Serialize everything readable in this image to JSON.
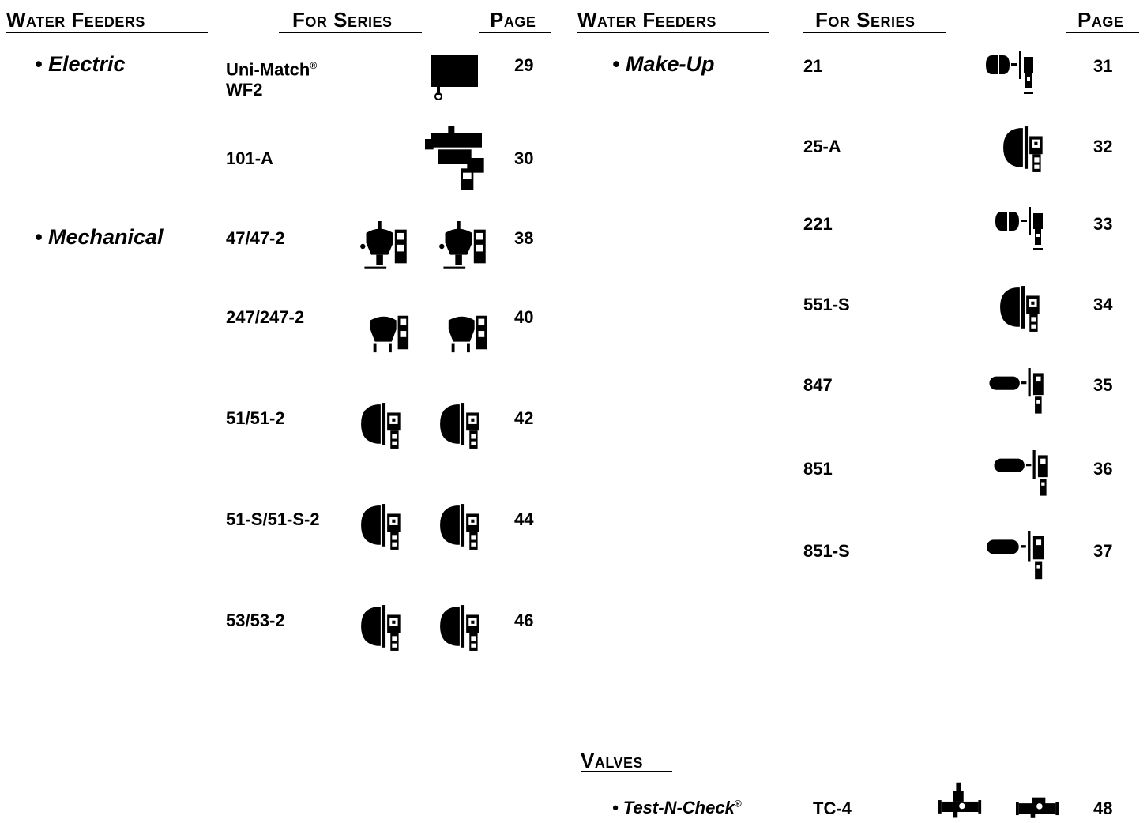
{
  "left": {
    "headers": {
      "water_feeders": "Water Feeders",
      "for_series": "For Series",
      "page": "Page"
    },
    "electric": {
      "label": "Electric",
      "items": [
        {
          "series_line1": "Uni-Match",
          "series_sup": "®",
          "series_line2": "WF2",
          "page": "29"
        },
        {
          "series": "101-A",
          "page": "30"
        }
      ]
    },
    "mechanical": {
      "label": "Mechanical",
      "items": [
        {
          "series": "47/47-2",
          "page": "38"
        },
        {
          "series": "247/247-2",
          "page": "40"
        },
        {
          "series": "51/51-2",
          "page": "42"
        },
        {
          "series": "51-S/51-S-2",
          "page": "44"
        },
        {
          "series": "53/53-2",
          "page": "46"
        }
      ]
    }
  },
  "right": {
    "headers": {
      "water_feeders": "Water Feeders",
      "for_series": "For Series",
      "page": "Page"
    },
    "makeup": {
      "label": "Make-Up",
      "items": [
        {
          "series": "21",
          "page": "31"
        },
        {
          "series": "25-A",
          "page": "32"
        },
        {
          "series": "221",
          "page": "33"
        },
        {
          "series": "551-S",
          "page": "34"
        },
        {
          "series": "847",
          "page": "35"
        },
        {
          "series": "851",
          "page": "36"
        },
        {
          "series": "851-S",
          "page": "37"
        }
      ]
    },
    "valves": {
      "header": "Valves",
      "test_n_check": {
        "label": "Test-N-Check",
        "sup": "®",
        "series": "TC-4",
        "page": "48"
      }
    }
  }
}
